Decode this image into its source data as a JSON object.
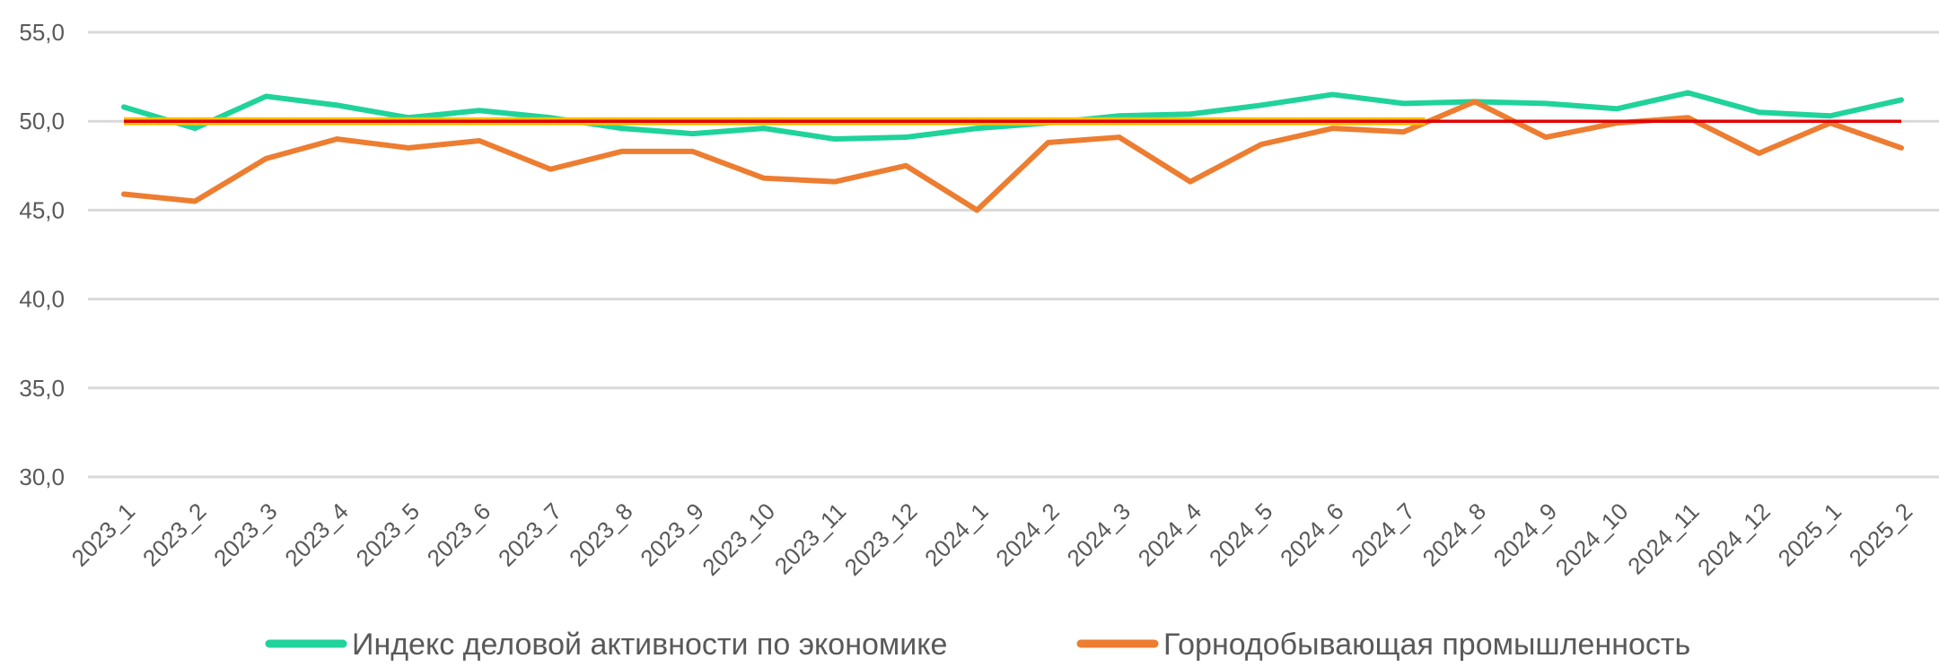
{
  "chart_data": {
    "type": "line",
    "categories": [
      "2023_1",
      "2023_2",
      "2023_3",
      "2023_4",
      "2023_5",
      "2023_6",
      "2023_7",
      "2023_8",
      "2023_9",
      "2023_10",
      "2023_11",
      "2023_12",
      "2024_1",
      "2024_2",
      "2024_3",
      "2024_4",
      "2024_5",
      "2024_6",
      "2024_7",
      "2024_8",
      "2024_9",
      "2024_10",
      "2024_11",
      "2024_12",
      "2025_1",
      "2025_2"
    ],
    "ylim": [
      30,
      55
    ],
    "yticks": [
      "30,0",
      "35,0",
      "40,0",
      "45,0",
      "50,0",
      "55,0"
    ],
    "ytick_values": [
      30,
      35,
      40,
      45,
      50,
      55
    ],
    "grid": true,
    "legend_position": "bottom",
    "series": [
      {
        "name": "Индекс деловой активности по экономике",
        "color": "#1fd39a",
        "values": [
          50.8,
          49.6,
          51.4,
          50.9,
          50.2,
          50.6,
          50.2,
          49.6,
          49.3,
          49.6,
          49.0,
          49.1,
          49.6,
          49.9,
          50.3,
          50.4,
          50.9,
          51.5,
          51.0,
          51.1,
          51.0,
          50.7,
          51.6,
          50.5,
          50.3,
          51.2
        ]
      },
      {
        "name": "Горнодобывающая промышленность",
        "color": "#ed7d31",
        "values": [
          45.9,
          45.5,
          47.9,
          49.0,
          48.5,
          48.9,
          47.3,
          48.3,
          48.3,
          46.8,
          46.6,
          47.5,
          45.0,
          48.8,
          49.1,
          46.6,
          48.7,
          49.6,
          49.4,
          51.1,
          49.1,
          49.9,
          50.2,
          48.2,
          49.9,
          48.5
        ]
      }
    ],
    "reference_line": {
      "value": 50,
      "color": "#e00000",
      "highlight_color": "#ffc000",
      "highlight_to": "2024_7"
    }
  }
}
